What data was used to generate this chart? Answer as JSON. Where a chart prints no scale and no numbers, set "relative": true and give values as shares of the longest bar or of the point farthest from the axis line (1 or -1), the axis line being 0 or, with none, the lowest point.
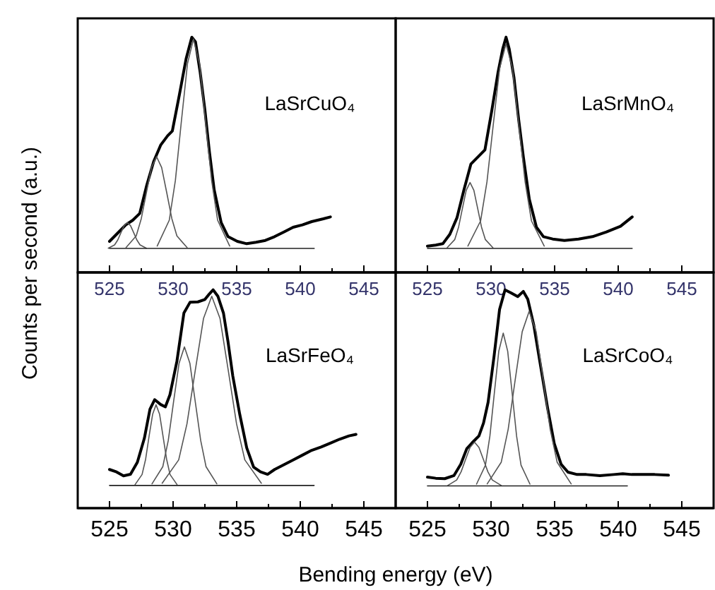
{
  "chart_data": [
    {
      "type": "line",
      "title": "LaSrCuO₄",
      "ylabel": "Counts per second (a.u.)",
      "relative": true,
      "tick_labels": "x",
      "xlim": [
        522.5,
        547.5
      ],
      "xticks": [
        525,
        {
          "value": 527.5,
          "label": null
        },
        530,
        {
          "value": 532.5,
          "label": null
        },
        535,
        {
          "value": 537.5,
          "label": null
        },
        540,
        {
          "value": 542.5,
          "label": null
        },
        545
      ],
      "series": [
        {
          "color": "#000000",
          "x": [
            525.0,
            525.55,
            526.28,
            526.83,
            527.38,
            527.93,
            528.47,
            529.02,
            529.57,
            529.94,
            530.48,
            531.03,
            531.47,
            531.76,
            532.13,
            532.5,
            532.86,
            533.23,
            533.78,
            534.32,
            535.05,
            535.79,
            536.52,
            537.25,
            537.98,
            538.71,
            539.44,
            540.17,
            540.9,
            541.82,
            542.37
          ],
          "values": [
            0.132,
            0.162,
            0.202,
            0.222,
            0.251,
            0.371,
            0.471,
            0.541,
            0.581,
            0.601,
            0.751,
            0.91,
            1.0,
            0.98,
            0.85,
            0.691,
            0.511,
            0.351,
            0.212,
            0.152,
            0.132,
            0.122,
            0.128,
            0.136,
            0.152,
            0.172,
            0.192,
            0.202,
            0.216,
            0.228,
            0.236
          ]
        },
        {
          "color": "#555555",
          "x": [
            524.9,
            525.4,
            525.65,
            525.9,
            526.15,
            526.4,
            526.65,
            526.9,
            527.15,
            527.4,
            527.9
          ],
          "values": [
            0.103,
            0.117,
            0.138,
            0.169,
            0.199,
            0.212,
            0.199,
            0.169,
            0.138,
            0.117,
            0.103
          ]
        },
        {
          "color": "#555555",
          "x": [
            526.3,
            527.1,
            527.5,
            527.9,
            528.3,
            528.7,
            529.1,
            529.5,
            529.9,
            530.3,
            531.1
          ],
          "values": [
            0.106,
            0.155,
            0.229,
            0.339,
            0.446,
            0.492,
            0.446,
            0.339,
            0.229,
            0.155,
            0.106
          ]
        },
        {
          "color": "#555555",
          "x": [
            528.75,
            529.7,
            530.18,
            530.65,
            531.13,
            531.6,
            532.08,
            532.55,
            533.03,
            533.5,
            534.45
          ],
          "values": [
            0.112,
            0.222,
            0.391,
            0.642,
            0.887,
            0.992,
            0.887,
            0.642,
            0.391,
            0.222,
            0.112
          ]
        },
        {
          "color": "#222222",
          "x": [
            525.0,
            541.1
          ],
          "values": [
            0.102,
            0.102
          ]
        }
      ]
    },
    {
      "type": "line",
      "title": "LaSrMnO₄",
      "relative": true,
      "tick_labels": "x",
      "xlim": [
        522.5,
        547.5
      ],
      "xticks": [
        525,
        {
          "value": 527.5,
          "label": null
        },
        530,
        {
          "value": 532.5,
          "label": null
        },
        535,
        {
          "value": 537.5,
          "label": null
        },
        540,
        {
          "value": 542.5,
          "label": null
        },
        545
      ],
      "series": [
        {
          "color": "#000000",
          "x": [
            525.0,
            525.66,
            526.21,
            526.76,
            527.32,
            527.87,
            528.42,
            528.97,
            529.52,
            530.07,
            530.55,
            530.92,
            531.18,
            531.43,
            531.8,
            532.17,
            532.54,
            533.01,
            533.57,
            534.12,
            534.85,
            535.77,
            536.88,
            537.98,
            539.08,
            540.18,
            541.1
          ],
          "values": [
            0.112,
            0.116,
            0.122,
            0.162,
            0.232,
            0.351,
            0.461,
            0.491,
            0.521,
            0.691,
            0.85,
            0.95,
            1.0,
            0.95,
            0.83,
            0.651,
            0.491,
            0.311,
            0.192,
            0.152,
            0.142,
            0.136,
            0.142,
            0.152,
            0.172,
            0.196,
            0.236
          ]
        },
        {
          "color": "#555555",
          "x": [
            526.55,
            527.15,
            527.45,
            527.75,
            528.05,
            528.35,
            528.65,
            528.95,
            529.25,
            529.55,
            530.15
          ],
          "values": [
            0.105,
            0.14,
            0.193,
            0.272,
            0.349,
            0.382,
            0.349,
            0.272,
            0.193,
            0.14,
            0.105
          ]
        },
        {
          "color": "#555555",
          "x": [
            528.18,
            529.18,
            529.68,
            530.18,
            530.68,
            531.18,
            531.68,
            532.18,
            532.68,
            533.18,
            534.18
          ],
          "values": [
            0.112,
            0.219,
            0.385,
            0.63,
            0.869,
            0.972,
            0.869,
            0.63,
            0.385,
            0.219,
            0.112
          ]
        },
        {
          "color": "#222222",
          "x": [
            525.0,
            541.1
          ],
          "values": [
            0.102,
            0.102
          ]
        }
      ]
    },
    {
      "type": "line",
      "title": "LaSrFeO₄",
      "xlabel": "Bending energy (eV)",
      "relative": true,
      "tick_labels": "x",
      "xlim": [
        522.5,
        547.5
      ],
      "xticks": [
        525,
        {
          "value": 527.5,
          "label": null
        },
        530,
        {
          "value": 532.5,
          "label": null
        },
        535,
        {
          "value": 537.5,
          "label": null
        },
        540,
        {
          "value": 542.5,
          "label": null
        },
        545
      ],
      "series": [
        {
          "color": "#000000",
          "x": [
            525.0,
            525.55,
            526.1,
            526.65,
            527.19,
            527.74,
            528.18,
            528.55,
            529.02,
            529.39,
            529.75,
            530.3,
            530.85,
            531.33,
            531.95,
            532.5,
            532.86,
            533.15,
            533.52,
            533.96,
            534.32,
            534.69,
            535.24,
            535.79,
            536.33,
            536.88,
            537.43,
            537.98,
            538.71,
            539.44,
            540.17,
            540.9,
            541.64,
            542.37,
            543.1,
            543.83,
            544.38
          ],
          "values": [
            0.177,
            0.166,
            0.148,
            0.155,
            0.21,
            0.32,
            0.453,
            0.497,
            0.475,
            0.464,
            0.519,
            0.673,
            0.894,
            0.943,
            0.945,
            0.956,
            0.982,
            1.0,
            0.971,
            0.894,
            0.762,
            0.607,
            0.43,
            0.276,
            0.188,
            0.166,
            0.155,
            0.177,
            0.199,
            0.221,
            0.243,
            0.265,
            0.28,
            0.298,
            0.316,
            0.331,
            0.338
          ]
        },
        {
          "color": "#555555",
          "x": [
            527.01,
            527.56,
            527.84,
            528.11,
            528.39,
            528.66,
            528.94,
            529.21,
            529.49,
            529.76,
            530.31
          ],
          "values": [
            0.108,
            0.154,
            0.224,
            0.329,
            0.43,
            0.474,
            0.43,
            0.329,
            0.224,
            0.154,
            0.108
          ]
        },
        {
          "color": "#555555",
          "x": [
            528.34,
            529.19,
            529.62,
            530.04,
            530.47,
            530.89,
            531.32,
            531.74,
            532.17,
            532.59,
            533.44
          ],
          "values": [
            0.111,
            0.19,
            0.31,
            0.489,
            0.664,
            0.739,
            0.664,
            0.489,
            0.31,
            0.19,
            0.111
          ]
        },
        {
          "color": "#555555",
          "x": [
            529.14,
            530.44,
            531.09,
            531.74,
            532.39,
            533.04,
            533.69,
            534.34,
            534.99,
            535.64,
            536.94
          ],
          "values": [
            0.114,
            0.221,
            0.386,
            0.63,
            0.869,
            0.971,
            0.869,
            0.63,
            0.386,
            0.221,
            0.114
          ]
        },
        {
          "color": "#222222",
          "x": [
            525.0,
            541.09
          ],
          "values": [
            0.104,
            0.104
          ]
        }
      ]
    },
    {
      "type": "line",
      "title": "LaSrCoO₄",
      "relative": true,
      "tick_labels": "x",
      "xlim": [
        522.5,
        547.5
      ],
      "xticks": [
        525,
        {
          "value": 527.5,
          "label": null
        },
        530,
        {
          "value": 532.5,
          "label": null
        },
        535,
        {
          "value": 537.5,
          "label": null
        },
        540,
        {
          "value": 542.5,
          "label": null
        },
        545
      ],
      "series": [
        {
          "color": "#000000",
          "x": [
            525.0,
            525.65,
            526.36,
            527.08,
            527.62,
            528.09,
            528.52,
            529.05,
            529.41,
            529.77,
            530.24,
            530.67,
            531.1,
            531.57,
            532.1,
            532.54,
            532.89,
            533.36,
            533.9,
            534.44,
            534.97,
            535.51,
            536.05,
            536.77,
            537.49,
            538.56,
            539.64,
            540.36,
            541.07,
            541.79,
            542.87,
            543.95
          ],
          "values": [
            0.142,
            0.137,
            0.135,
            0.149,
            0.201,
            0.272,
            0.3,
            0.331,
            0.39,
            0.485,
            0.697,
            0.91,
            1.0,
            0.986,
            0.969,
            0.993,
            0.957,
            0.839,
            0.65,
            0.461,
            0.296,
            0.201,
            0.165,
            0.154,
            0.154,
            0.149,
            0.154,
            0.158,
            0.154,
            0.154,
            0.154,
            0.151
          ]
        },
        {
          "color": "#555555",
          "x": [
            526.6,
            527.3,
            527.65,
            528.0,
            528.35,
            528.7,
            529.05,
            529.4,
            529.75,
            530.1,
            530.8
          ],
          "values": [
            0.104,
            0.129,
            0.167,
            0.223,
            0.278,
            0.302,
            0.278,
            0.223,
            0.167,
            0.129,
            0.104
          ]
        },
        {
          "color": "#555555",
          "x": [
            528.86,
            529.56,
            529.91,
            530.26,
            530.61,
            530.96,
            531.31,
            531.66,
            532.01,
            532.36,
            533.06
          ],
          "values": [
            0.11,
            0.197,
            0.33,
            0.527,
            0.719,
            0.802,
            0.719,
            0.527,
            0.33,
            0.197,
            0.11
          ]
        },
        {
          "color": "#555555",
          "x": [
            529.7,
            530.8,
            531.35,
            531.9,
            532.45,
            533.0,
            533.55,
            534.1,
            534.65,
            535.2,
            536.3
          ],
          "values": [
            0.111,
            0.21,
            0.362,
            0.588,
            0.808,
            0.902,
            0.808,
            0.588,
            0.362,
            0.21,
            0.111
          ]
        },
        {
          "color": "#222222",
          "x": [
            525.0,
            540.72
          ],
          "values": [
            0.102,
            0.102
          ]
        }
      ]
    }
  ]
}
